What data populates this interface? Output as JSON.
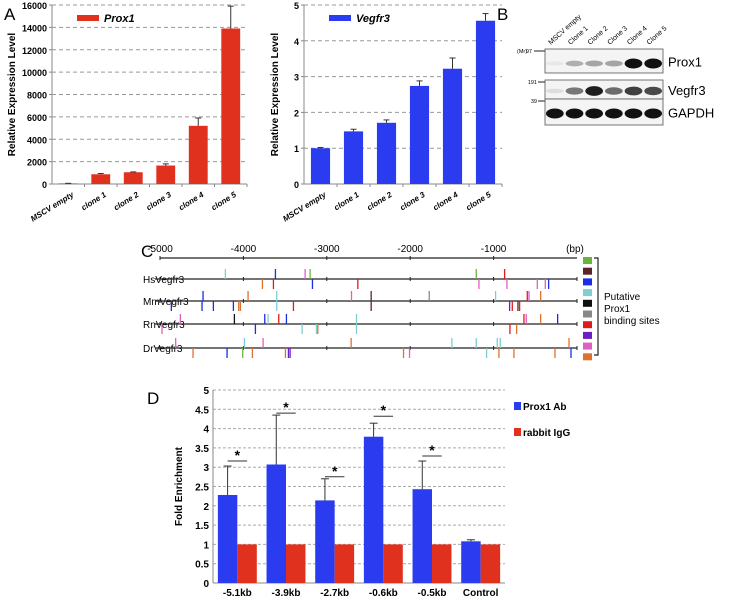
{
  "panels": {
    "a": "A",
    "b": "B",
    "c": "C",
    "d": "D"
  },
  "chart_data": [
    {
      "id": "prox1",
      "type": "bar",
      "title": "",
      "legend": "Prox1",
      "legend_position": "top-left",
      "ylabel": "Relative Expression Level",
      "xlabel": "",
      "ylim": [
        0,
        16000
      ],
      "yticks": [
        0,
        2000,
        4000,
        6000,
        8000,
        10000,
        12000,
        14000,
        16000
      ],
      "grid": true,
      "color": "#e0301e",
      "categories": [
        "MSCV empty",
        "clone 1",
        "clone 2",
        "clone 3",
        "clone 4",
        "clone 5"
      ],
      "values": [
        50,
        870,
        1050,
        1650,
        5200,
        13900
      ],
      "errors": [
        10,
        70,
        30,
        150,
        700,
        2000
      ]
    },
    {
      "id": "vegfr3",
      "type": "bar",
      "title": "",
      "legend": "Vegfr3",
      "legend_position": "top-left",
      "ylabel": "Relative Expression Level",
      "xlabel": "",
      "ylim": [
        0,
        5
      ],
      "yticks": [
        0,
        1,
        2,
        3,
        4,
        5
      ],
      "grid": true,
      "color": "#2b3cf0",
      "categories": [
        "MSCV empty",
        "clone 1",
        "clone 2",
        "clone 3",
        "clone 4",
        "clone 5"
      ],
      "values": [
        1.0,
        1.47,
        1.71,
        2.74,
        3.22,
        4.56
      ],
      "errors": [
        0.02,
        0.06,
        0.08,
        0.14,
        0.3,
        0.2
      ]
    },
    {
      "id": "blot",
      "type": "table",
      "lanes": [
        "MSCV empty",
        "Clone 1",
        "Clone 2",
        "Clone 3",
        "Clone 4",
        "Clone 5"
      ],
      "marker_unit": "(Mr)",
      "rows": [
        {
          "label": "Prox1",
          "marker": "97",
          "intensity": [
            0.05,
            0.3,
            0.35,
            0.35,
            1.0,
            1.0
          ]
        },
        {
          "label": "Vegfr3",
          "marker": "191",
          "intensity": [
            0.1,
            0.55,
            0.95,
            0.6,
            0.8,
            0.75
          ]
        },
        {
          "label": "GAPDH",
          "marker": "39",
          "intensity": [
            1,
            1,
            1,
            1,
            1,
            1
          ]
        }
      ]
    },
    {
      "id": "binding-sites",
      "type": "scatter",
      "axis_unit": "(bp)",
      "xlim": [
        -5000,
        0
      ],
      "xticks": [
        -5000,
        -4000,
        -3000,
        -2000,
        -1000
      ],
      "legend_label": "Putative Prox1 binding sites",
      "legend_lines": [
        "Putative",
        "Prox1",
        "binding sites"
      ],
      "site_colors": [
        "#6ab43e",
        "#5c2424",
        "#1a2ee8",
        "#7fcfcf",
        "#111111",
        "#888888",
        "#e01b1b",
        "#6a1fc0",
        "#e060c0",
        "#e07030"
      ],
      "tracks": [
        {
          "name": "HsVegfr3",
          "sites": [
            [
              -4216,
              3,
              "up"
            ],
            [
              -3616,
              2,
              "up"
            ],
            [
              -3260,
              8,
              "up"
            ],
            [
              -3200,
              0,
              "up"
            ],
            [
              -1208,
              0,
              "up"
            ],
            [
              -868,
              6,
              "up"
            ],
            [
              -3772,
              9,
              "down"
            ],
            [
              -3640,
              6,
              "down"
            ],
            [
              -3172,
              2,
              "down"
            ],
            [
              -2628,
              6,
              "down"
            ],
            [
              -1176,
              8,
              "down"
            ],
            [
              -840,
              8,
              "down"
            ],
            [
              -476,
              8,
              "down"
            ],
            [
              -380,
              8,
              "down"
            ],
            [
              -340,
              2,
              "down"
            ]
          ]
        },
        {
          "name": "MmVegfr3",
          "sites": [
            [
              -4484,
              2,
              "up"
            ],
            [
              -3944,
              9,
              "up"
            ],
            [
              -3600,
              3,
              "up"
            ],
            [
              -2704,
              8,
              "up"
            ],
            [
              -2468,
              1,
              "both"
            ],
            [
              -1772,
              5,
              "up"
            ],
            [
              -976,
              3,
              "up"
            ],
            [
              -596,
              6,
              "up"
            ],
            [
              -576,
              8,
              "up"
            ],
            [
              -436,
              9,
              "up"
            ],
            [
              -4864,
              2,
              "down"
            ],
            [
              -4496,
              2,
              "down"
            ],
            [
              -4360,
              2,
              "down"
            ],
            [
              -4120,
              2,
              "down"
            ],
            [
              -4056,
              9,
              "down"
            ],
            [
              -4036,
              9,
              "down"
            ],
            [
              -3600,
              3,
              "down"
            ],
            [
              -3400,
              6,
              "down"
            ],
            [
              -808,
              7,
              "down"
            ],
            [
              -776,
              6,
              "down"
            ],
            [
              -708,
              1,
              "down"
            ],
            [
              -688,
              6,
              "down"
            ]
          ]
        },
        {
          "name": "RnVegfr3",
          "sites": [
            [
              -4756,
              8,
              "up"
            ],
            [
              -4108,
              4,
              "up"
            ],
            [
              -3744,
              2,
              "up"
            ],
            [
              -3704,
              3,
              "up"
            ],
            [
              -3576,
              6,
              "up"
            ],
            [
              -3484,
              2,
              "up"
            ],
            [
              -2644,
              3,
              "both"
            ],
            [
              -636,
              6,
              "up"
            ],
            [
              -608,
              8,
              "up"
            ],
            [
              -436,
              9,
              "up"
            ],
            [
              -232,
              2,
              "up"
            ],
            [
              -4976,
              8,
              "down"
            ],
            [
              -3856,
              2,
              "down"
            ],
            [
              -3296,
              3,
              "down"
            ],
            [
              -3124,
              3,
              "down"
            ],
            [
              -3108,
              9,
              "down"
            ],
            [
              -804,
              6,
              "down"
            ],
            [
              -724,
              9,
              "down"
            ]
          ]
        },
        {
          "name": "DrVegfr3",
          "sites": [
            [
              -4812,
              8,
              "up"
            ],
            [
              -3988,
              3,
              "up"
            ],
            [
              -3764,
              8,
              "up"
            ],
            [
              -2708,
              9,
              "up"
            ],
            [
              -1500,
              3,
              "up"
            ],
            [
              -1208,
              3,
              "up"
            ],
            [
              -956,
              3,
              "up"
            ],
            [
              -920,
              3,
              "up"
            ],
            [
              -96,
              9,
              "up"
            ],
            [
              -4604,
              9,
              "down"
            ],
            [
              -4196,
              2,
              "down"
            ],
            [
              -4008,
              0,
              "down"
            ],
            [
              -3892,
              9,
              "down"
            ],
            [
              -3496,
              9,
              "down"
            ],
            [
              -3460,
              7,
              "down"
            ],
            [
              -3440,
              7,
              "down"
            ],
            [
              -2080,
              9,
              "down"
            ],
            [
              -2008,
              8,
              "down"
            ],
            [
              -1084,
              3,
              "down"
            ],
            [
              -936,
              9,
              "down"
            ],
            [
              -756,
              9,
              "down"
            ],
            [
              -264,
              9,
              "down"
            ],
            [
              -72,
              2,
              "down"
            ]
          ]
        }
      ]
    },
    {
      "id": "chip",
      "type": "bar",
      "ylabel": "Fold Enrichment",
      "xlabel": "",
      "ylim": [
        0,
        5
      ],
      "yticks": [
        0,
        0.5,
        1,
        1.5,
        2,
        2.5,
        3,
        3.5,
        4,
        4.5,
        5
      ],
      "grid": true,
      "legend_position": "right",
      "categories": [
        "-5.1kb",
        "-3.9kb",
        "-2.7kb",
        "-0.6kb",
        "-0.5kb",
        "Control"
      ],
      "series": [
        {
          "name": "Prox1 Ab",
          "color": "#2b3cf0",
          "values": [
            2.28,
            3.07,
            2.14,
            3.79,
            2.43,
            1.08
          ],
          "errors": [
            0.75,
            1.28,
            0.56,
            0.35,
            0.73,
            0.04
          ]
        },
        {
          "name": "rabbit IgG",
          "color": "#e0301e",
          "values": [
            1,
            1,
            1,
            1,
            1,
            1
          ],
          "errors": [
            0,
            0,
            0,
            0,
            0,
            0
          ]
        }
      ],
      "significance": [
        "*",
        "*",
        "*",
        "*",
        "*",
        ""
      ]
    }
  ]
}
